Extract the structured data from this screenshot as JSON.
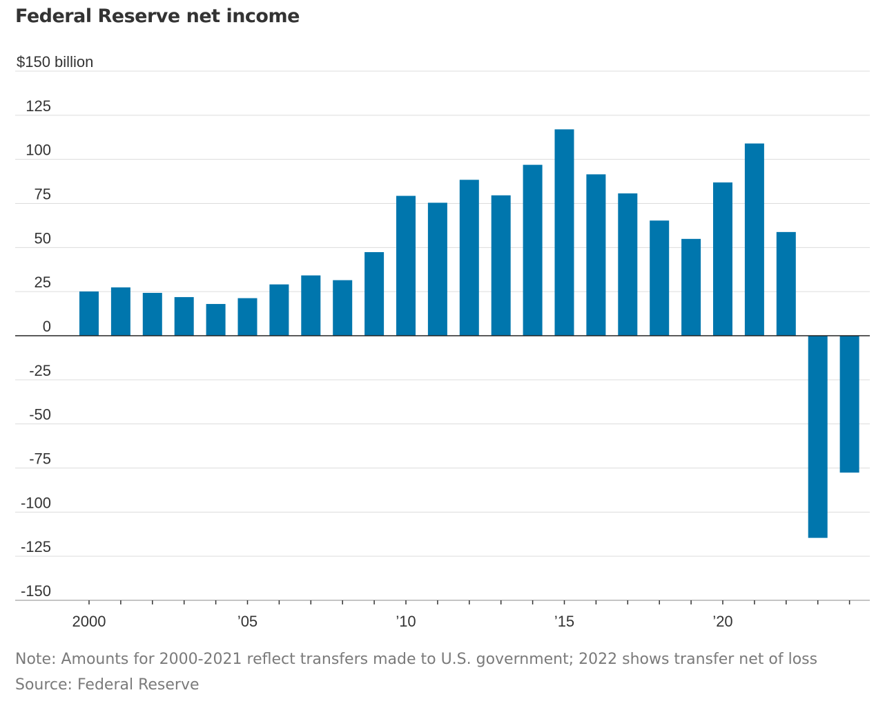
{
  "chart_data": {
    "type": "bar",
    "title": "Federal Reserve net income",
    "y_unit_label": "$150 billion",
    "x": [
      2000,
      2001,
      2002,
      2003,
      2004,
      2005,
      2006,
      2007,
      2008,
      2009,
      2010,
      2011,
      2012,
      2013,
      2014,
      2015,
      2016,
      2017,
      2018,
      2019,
      2020,
      2021,
      2022,
      2023,
      2024
    ],
    "values": [
      25.1,
      27.4,
      24.3,
      21.9,
      18.0,
      21.3,
      29.1,
      34.2,
      31.5,
      47.4,
      79.3,
      75.4,
      88.4,
      79.6,
      96.9,
      117.0,
      91.5,
      80.7,
      65.3,
      54.9,
      86.9,
      109.0,
      58.8,
      -114.6,
      -77.6
    ],
    "xtick_labels": [
      {
        "year": 2000,
        "label": "2000"
      },
      {
        "year": 2005,
        "label": "’05"
      },
      {
        "year": 2010,
        "label": "’10"
      },
      {
        "year": 2015,
        "label": "’15"
      },
      {
        "year": 2020,
        "label": "’20"
      }
    ],
    "ytick_values": [
      150,
      125,
      100,
      75,
      50,
      25,
      0,
      -25,
      -50,
      -75,
      -100,
      -125,
      -150
    ],
    "ytick_labels": [
      "$150 billion",
      "125",
      "100",
      "75",
      "50",
      "25",
      "0",
      "-25",
      "-50",
      "-75",
      "-100",
      "-125",
      "-150"
    ],
    "ylim": [
      -150,
      150
    ],
    "xlim": [
      2000,
      2024
    ],
    "grid": true,
    "bar_color": "#0076ad"
  },
  "footer": {
    "note": "Note: Amounts for 2000-2021 reflect transfers made to U.S. government; 2022 shows transfer net of loss",
    "source": "Source: Federal Reserve"
  }
}
